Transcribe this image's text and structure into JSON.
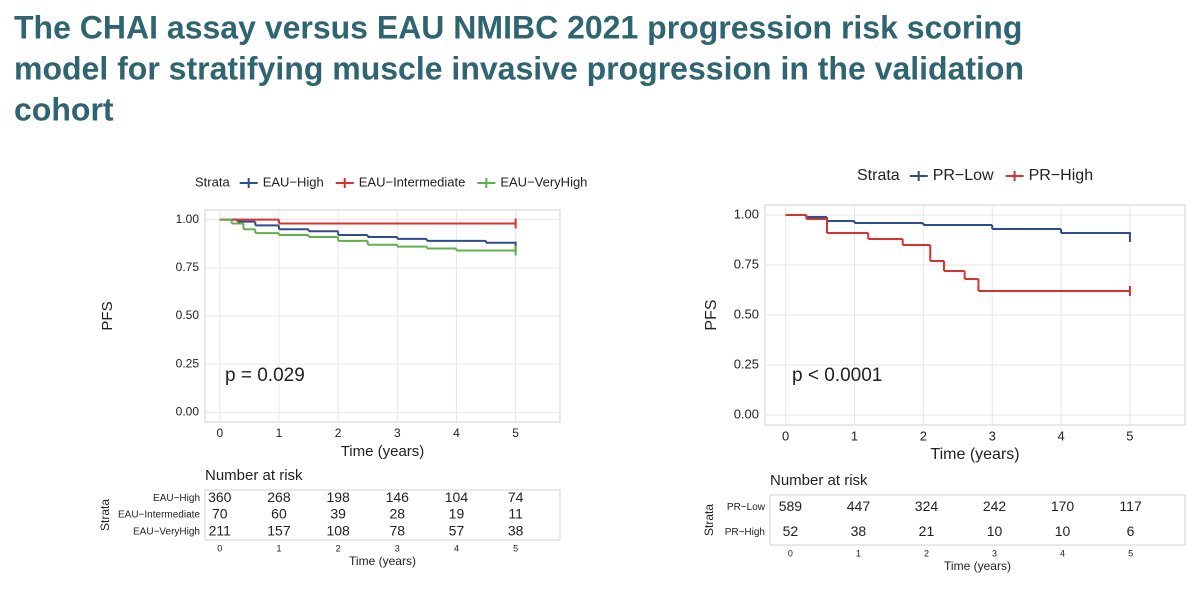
{
  "slide_title": [
    "The CHAI assay versus EAU NMIBC 2021 progression risk scoring",
    "model for stratifying muscle invasive progression in the validation",
    "cohort"
  ],
  "chart_data": [
    {
      "type": "step",
      "legend_title": "Strata",
      "ylabel": "PFS",
      "xlabel": "Time (years)",
      "annotation": "p = 0.029",
      "xlim": [
        -0.25,
        5.75
      ],
      "ylim": [
        -0.05,
        1.05
      ],
      "xticks": [
        0,
        1,
        2,
        3,
        4,
        5
      ],
      "yticks": [
        {
          "value": 0,
          "label": "0.00"
        },
        {
          "value": 0.25,
          "label": "0.25"
        },
        {
          "value": 0.5,
          "label": "0.50"
        },
        {
          "value": 0.75,
          "label": "0.75"
        },
        {
          "value": 1,
          "label": "1.00"
        }
      ],
      "grid": true,
      "series": [
        {
          "name": "EAU−High",
          "color": "#2e4d8f",
          "x": [
            0,
            0.3,
            0.6,
            1.0,
            1.5,
            2,
            2.5,
            3,
            3.5,
            4,
            4.5,
            5
          ],
          "values": [
            1,
            0.99,
            0.97,
            0.95,
            0.94,
            0.92,
            0.91,
            0.9,
            0.89,
            0.89,
            0.88,
            0.86
          ]
        },
        {
          "name": "EAU−Intermediate",
          "color": "#d8322c",
          "x": [
            0,
            0.5,
            1,
            5
          ],
          "values": [
            1,
            1,
            0.98,
            0.98
          ]
        },
        {
          "name": "EAU−VeryHigh",
          "color": "#5fb14a",
          "x": [
            0,
            0.2,
            0.4,
            0.6,
            1,
            1.5,
            2,
            2.5,
            3,
            3.5,
            4,
            5
          ],
          "values": [
            1,
            0.98,
            0.95,
            0.93,
            0.92,
            0.91,
            0.89,
            0.87,
            0.86,
            0.85,
            0.84,
            0.84
          ]
        }
      ],
      "risk_table": {
        "title": "Number at risk",
        "ylabel": "Strata",
        "xlabel": "Time (years)",
        "xticks": [
          0,
          1,
          2,
          3,
          4,
          5
        ],
        "rows": [
          {
            "name": "EAU−High",
            "color": "#2e4d8f",
            "values": [
              360,
              268,
              198,
              146,
              104,
              74
            ]
          },
          {
            "name": "EAU−Intermediate",
            "color": "#d8322c",
            "values": [
              70,
              60,
              39,
              28,
              19,
              11
            ]
          },
          {
            "name": "EAU−VeryHigh",
            "color": "#5fb14a",
            "values": [
              211,
              157,
              108,
              78,
              57,
              38
            ]
          }
        ]
      }
    },
    {
      "type": "step",
      "legend_title": "Strata",
      "ylabel": "PFS",
      "xlabel": "Time (years)",
      "annotation": "p < 0.0001",
      "xlim": [
        -0.3,
        5.8
      ],
      "ylim": [
        -0.05,
        1.05
      ],
      "xticks": [
        0,
        1,
        2,
        3,
        4,
        5
      ],
      "yticks": [
        {
          "value": 0,
          "label": "0.00"
        },
        {
          "value": 0.25,
          "label": "0.25"
        },
        {
          "value": 0.5,
          "label": "0.50"
        },
        {
          "value": 0.75,
          "label": "0.75"
        },
        {
          "value": 1,
          "label": "1.00"
        }
      ],
      "grid": true,
      "series": [
        {
          "name": "PR−Low",
          "color": "#2e4d8f",
          "x": [
            0,
            0.3,
            0.6,
            1,
            2,
            3,
            4,
            5
          ],
          "values": [
            1,
            0.99,
            0.97,
            0.96,
            0.95,
            0.93,
            0.91,
            0.89
          ]
        },
        {
          "name": "PR−High",
          "color": "#d8322c",
          "x": [
            0,
            0.3,
            0.6,
            1.2,
            1.7,
            2.1,
            2.3,
            2.6,
            2.8,
            5
          ],
          "values": [
            1,
            0.98,
            0.91,
            0.88,
            0.85,
            0.77,
            0.72,
            0.68,
            0.62,
            0.62
          ]
        }
      ],
      "risk_table": {
        "title": "Number at risk",
        "ylabel": "Strata",
        "xlabel": "Time (years)",
        "xticks": [
          0,
          1,
          2,
          3,
          4,
          5
        ],
        "rows": [
          {
            "name": "PR−Low",
            "color": "#2e4d8f",
            "values": [
              589,
              447,
              324,
              242,
              170,
              117
            ]
          },
          {
            "name": "PR−High",
            "color": "#d8322c",
            "values": [
              52,
              38,
              21,
              10,
              10,
              6
            ]
          }
        ]
      }
    }
  ]
}
